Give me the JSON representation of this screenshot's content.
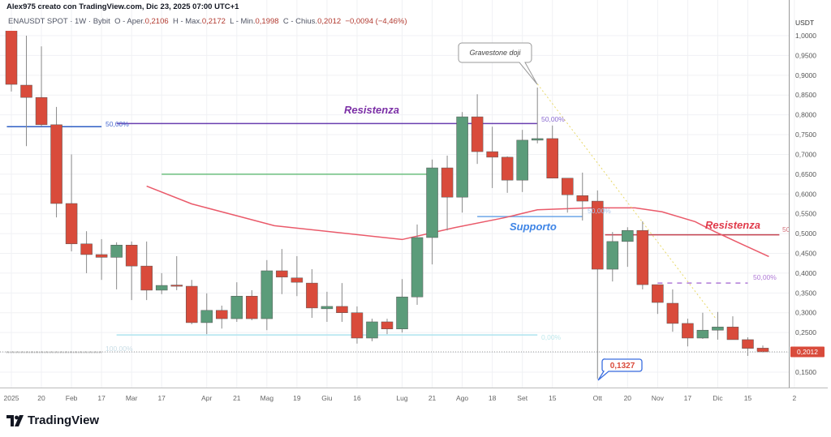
{
  "header": {
    "author_line": "Alex975 creato con TradingView.com, Dic 23, 2025 07:00 UTC+1",
    "symbol": "ENAUSDT SPOT · 1W · Bybit",
    "open_label": "O - Aper.",
    "open": "0,2106",
    "high_label": "H - Max.",
    "high": "0,2172",
    "low_label": "L - Min.",
    "low": "0,1998",
    "close_label": "C - Chius.",
    "close": "0,2012",
    "change": "−0,0094 (−4,46%)"
  },
  "colors": {
    "up": "#5b9c7a",
    "down": "#d94b3b",
    "ma": "#ea5a6a",
    "resistance_purple": "#6a3fb0",
    "support_blue": "#4a8ee6",
    "resistance_red": "#c4424f"
  },
  "price_axis": {
    "unit": "USDT",
    "ticks": [
      "1,0000",
      "0,9500",
      "0,9000",
      "0,8500",
      "0,8000",
      "0,7500",
      "0,7000",
      "0,6500",
      "0,6000",
      "0,5500",
      "0,5000",
      "0,4500",
      "0,4000",
      "0,3500",
      "0,3000",
      "0,2500",
      "0,1500"
    ],
    "tick_values": [
      1.0,
      0.95,
      0.9,
      0.85,
      0.8,
      0.75,
      0.7,
      0.65,
      0.6,
      0.55,
      0.5,
      0.45,
      0.4,
      0.35,
      0.3,
      0.25,
      0.15
    ],
    "last_price": "0,2012",
    "last_price_value": 0.2012
  },
  "time_axis": {
    "labels": [
      "2025",
      "20",
      "Feb",
      "17",
      "Mar",
      "17",
      "Apr",
      "21",
      "Mag",
      "19",
      "Giu",
      "16",
      "Lug",
      "21",
      "Ago",
      "18",
      "Set",
      "15",
      "Ott",
      "20",
      "Nov",
      "17",
      "Dic",
      "15",
      "2"
    ],
    "label_bar_index": [
      0,
      2,
      4,
      6,
      8,
      10,
      13,
      15,
      17,
      19,
      21,
      23,
      26,
      28,
      30,
      32,
      34,
      36,
      39,
      41,
      43,
      45,
      47,
      49,
      52.1
    ]
  },
  "annotations": {
    "resistance_top": "Resistenza",
    "support": "Supporto",
    "resistance_bottom": "Resistenza",
    "gravestone": "Gravestone doji",
    "low_callout": "0,1327",
    "fib_50_left": "50,00%",
    "fib_100_left": "100,00%",
    "fib_50_mid": "50,00%",
    "fib_0_mid": "0,00%",
    "fib_50_support": "50,00%",
    "fib_50_right": "50",
    "fib_50_dashed": "50,00%"
  },
  "chart_data": {
    "type": "candlestick",
    "interval": "1W",
    "ylim": [
      0.11,
      1.02
    ],
    "grid": true,
    "candles_ohlc": [
      [
        1.08,
        1.12,
        0.859,
        0.877
      ],
      [
        0.875,
        1.0,
        0.721,
        0.844
      ],
      [
        0.844,
        0.973,
        0.77,
        0.775
      ],
      [
        0.775,
        0.82,
        0.541,
        0.576
      ],
      [
        0.576,
        0.7,
        0.455,
        0.474
      ],
      [
        0.474,
        0.506,
        0.4,
        0.447
      ],
      [
        0.447,
        0.486,
        0.383,
        0.44
      ],
      [
        0.44,
        0.478,
        0.359,
        0.471
      ],
      [
        0.471,
        0.48,
        0.332,
        0.418
      ],
      [
        0.418,
        0.48,
        0.332,
        0.357
      ],
      [
        0.357,
        0.4,
        0.347,
        0.369
      ],
      [
        0.37,
        0.443,
        0.357,
        0.368
      ],
      [
        0.367,
        0.383,
        0.271,
        0.275
      ],
      [
        0.275,
        0.349,
        0.246,
        0.306
      ],
      [
        0.306,
        0.318,
        0.26,
        0.285
      ],
      [
        0.285,
        0.377,
        0.277,
        0.342
      ],
      [
        0.342,
        0.357,
        0.281,
        0.285
      ],
      [
        0.285,
        0.433,
        0.256,
        0.406
      ],
      [
        0.406,
        0.461,
        0.347,
        0.39
      ],
      [
        0.388,
        0.443,
        0.342,
        0.377
      ],
      [
        0.375,
        0.41,
        0.287,
        0.312
      ],
      [
        0.31,
        0.353,
        0.277,
        0.316
      ],
      [
        0.316,
        0.375,
        0.277,
        0.3
      ],
      [
        0.3,
        0.316,
        0.222,
        0.236
      ],
      [
        0.236,
        0.285,
        0.228,
        0.277
      ],
      [
        0.277,
        0.285,
        0.246,
        0.259
      ],
      [
        0.259,
        0.385,
        0.25,
        0.34
      ],
      [
        0.34,
        0.523,
        0.32,
        0.49
      ],
      [
        0.49,
        0.687,
        0.422,
        0.666
      ],
      [
        0.666,
        0.697,
        0.508,
        0.592
      ],
      [
        0.592,
        0.807,
        0.553,
        0.795
      ],
      [
        0.795,
        0.852,
        0.676,
        0.707
      ],
      [
        0.707,
        0.77,
        0.615,
        0.693
      ],
      [
        0.693,
        0.695,
        0.603,
        0.635
      ],
      [
        0.635,
        0.762,
        0.605,
        0.736
      ],
      [
        0.736,
        0.869,
        0.728,
        0.74
      ],
      [
        0.74,
        0.773,
        0.64,
        0.64
      ],
      [
        0.64,
        0.64,
        0.553,
        0.598
      ],
      [
        0.596,
        0.654,
        0.533,
        0.582
      ],
      [
        0.582,
        0.609,
        0.1327,
        0.41
      ],
      [
        0.41,
        0.504,
        0.379,
        0.48
      ],
      [
        0.48,
        0.516,
        0.416,
        0.508
      ],
      [
        0.508,
        0.531,
        0.359,
        0.371
      ],
      [
        0.371,
        0.371,
        0.297,
        0.326
      ],
      [
        0.324,
        0.359,
        0.252,
        0.273
      ],
      [
        0.273,
        0.285,
        0.215,
        0.236
      ],
      [
        0.236,
        0.3,
        0.234,
        0.256
      ],
      [
        0.256,
        0.302,
        0.232,
        0.264
      ],
      [
        0.264,
        0.291,
        0.232,
        0.232
      ],
      [
        0.232,
        0.238,
        0.191,
        0.21
      ],
      [
        0.2106,
        0.2172,
        0.1998,
        0.2012
      ]
    ],
    "moving_average": [
      [
        9,
        0.62
      ],
      [
        12,
        0.575
      ],
      [
        15,
        0.545
      ],
      [
        17.5,
        0.52
      ],
      [
        26,
        0.485
      ],
      [
        29.5,
        0.515
      ],
      [
        32.8,
        0.54
      ],
      [
        35,
        0.56
      ],
      [
        38.5,
        0.565
      ],
      [
        41.5,
        0.565
      ],
      [
        43.3,
        0.555
      ],
      [
        45.5,
        0.53
      ],
      [
        46.8,
        0.505
      ],
      [
        48.5,
        0.475
      ],
      [
        50.4,
        0.442
      ]
    ],
    "levels": [
      {
        "label_key": "fib_50_left",
        "price": 0.77,
        "from_bar": -0.3,
        "to_bar": 6,
        "color": "#2f5fc4"
      },
      {
        "label_key": "resistance_top",
        "price": 0.778,
        "from_bar": 7,
        "to_bar": 35,
        "color": "#6a3fb0"
      },
      {
        "price": 0.65,
        "from_bar": 10,
        "to_bar": 28,
        "color": "#6cbf7f"
      },
      {
        "label_key": "fib_100_left",
        "price": 0.244,
        "from_bar": 7,
        "to_bar": 35,
        "color": "#aee3ef"
      },
      {
        "label_key": "support",
        "price": 0.543,
        "from_bar": 31,
        "to_bar": 38,
        "color": "#6ea6e8"
      },
      {
        "label_key": "resistance_bottom",
        "price": 0.497,
        "from_bar": 39.5,
        "to_bar": 51.1,
        "color": "#c4424f"
      },
      {
        "label_key": "fib_50_dashed",
        "price": 0.375,
        "from_bar": 43,
        "to_bar": 49,
        "color": "#b07ad6",
        "dashed": true
      }
    ],
    "trendline": [
      [
        35,
        0.878
      ],
      [
        46.9,
        0.284
      ]
    ]
  }
}
